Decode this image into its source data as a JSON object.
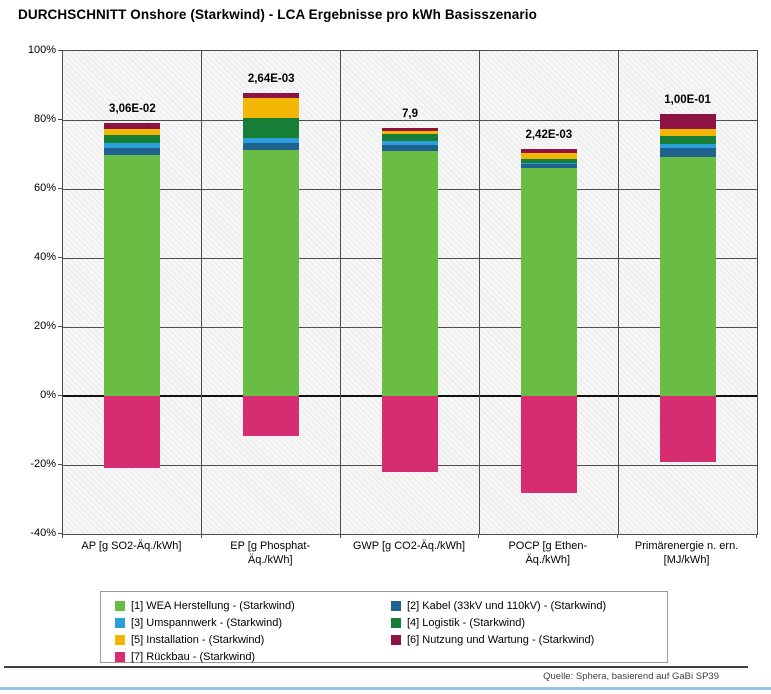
{
  "page": {
    "title": "DURCHSCHNITT Onshore (Starkwind) - LCA Ergebnisse pro kWh Basisszenario",
    "source": "Quelle: Sphera, basierend auf GaBi SP39"
  },
  "chart_data": {
    "type": "stacked-bar",
    "title": "DURCHSCHNITT Onshore (Starkwind) - LCA Ergebnisse pro kWh Basisszenario",
    "ylabel": "",
    "xlabel": "",
    "ylim": [
      -40,
      100
    ],
    "yticks": [
      100,
      80,
      60,
      40,
      20,
      0,
      -20,
      -40
    ],
    "ytick_suffix": "%",
    "grid": true,
    "legend_position": "bottom-box",
    "plot_bg": "hatched light gray",
    "categories": [
      "AP [g SO2-Äq./kWh]",
      "EP [g Phosphat-\nÄq./kWh]",
      "GWP [g CO2-Äq./kWh]",
      "POCP  [g Ethen-\nÄq./kWh]",
      "Primärenergie n. ern.\n[MJ/kWh]"
    ],
    "value_labels": [
      "3,06E-02",
      "2,64E-03",
      "7,9",
      "2,42E-03",
      "1,00E-01"
    ],
    "series": [
      {
        "name": "[1] WEA Herstellung - (Starkwind)",
        "color": "#69BD44",
        "values": [
          69.8,
          71.2,
          71.0,
          66.2,
          69.3
        ]
      },
      {
        "name": "[2] Kabel (33kV und 110kV) - (Starkwind)",
        "color": "#1F628F",
        "values": [
          2.0,
          2.0,
          1.8,
          1.0,
          2.5
        ]
      },
      {
        "name": "[3] Umspannwerk - (Starkwind)",
        "color": "#2B9FD9",
        "values": [
          1.4,
          1.5,
          1.1,
          0.4,
          1.2
        ]
      },
      {
        "name": "[4] Logistik - (Starkwind)",
        "color": "#177E38",
        "values": [
          2.5,
          6.0,
          2.0,
          1.2,
          2.3
        ]
      },
      {
        "name": "[5] Installation - (Starkwind)",
        "color": "#F2B705",
        "values": [
          1.6,
          5.8,
          1.0,
          1.7,
          2.0
        ]
      },
      {
        "name": "[6] Nutzung und Wartung - (Starkwind)",
        "color": "#8C1342",
        "values": [
          1.7,
          1.3,
          0.9,
          1.2,
          4.4
        ]
      },
      {
        "name": "[7] Rückbau - (Starkwind)",
        "color": "#D62D72",
        "values": [
          -21,
          -11.5,
          -22,
          -28,
          -19
        ]
      }
    ],
    "legend_columns": [
      [
        0,
        2,
        4,
        6
      ],
      [
        1,
        3,
        5
      ]
    ],
    "source": "Quelle: Sphera, basierend auf GaBi SP39"
  }
}
